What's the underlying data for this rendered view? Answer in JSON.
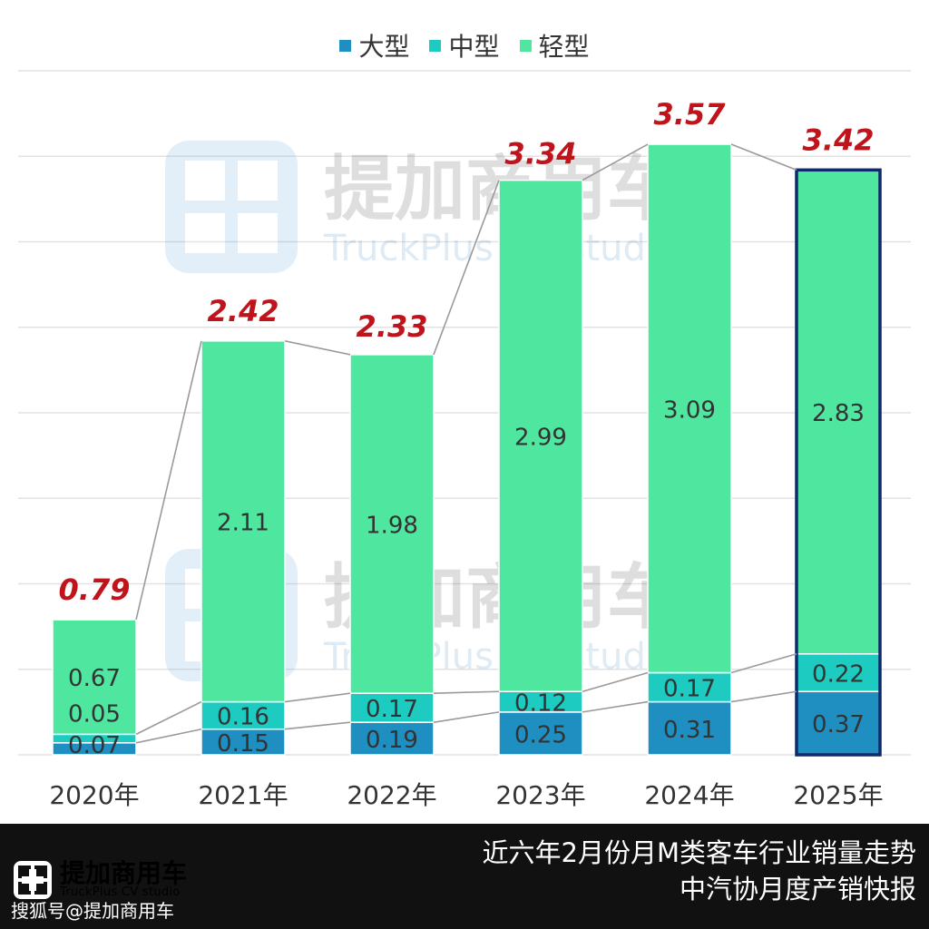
{
  "chart_data": {
    "type": "bar",
    "stacked": true,
    "categories": [
      "2020年",
      "2021年",
      "2022年",
      "2023年",
      "2024年",
      "2025年"
    ],
    "series": [
      {
        "name": "大型",
        "values": [
          0.07,
          0.15,
          0.19,
          0.25,
          0.31,
          0.37
        ],
        "color": "#1E8FC0"
      },
      {
        "name": "中型",
        "values": [
          0.05,
          0.16,
          0.17,
          0.12,
          0.17,
          0.22
        ],
        "color": "#1DCBC0"
      },
      {
        "name": "轻型",
        "values": [
          0.67,
          2.11,
          1.98,
          2.99,
          3.09,
          2.83
        ],
        "color": "#4FE6A0"
      }
    ],
    "totals": [
      0.79,
      2.42,
      2.33,
      3.34,
      3.57,
      3.42
    ],
    "totals_labels": [
      "0.79",
      "2.42",
      "2.33",
      "3.34",
      "3.57",
      "3.42"
    ],
    "ylim": [
      0,
      4
    ],
    "grid": true,
    "legend_position": "top-center",
    "highlighted_category": "2025年",
    "total_label_color": "#C0141C",
    "gridline_color": "#E2E2E2"
  },
  "legend": {
    "items": [
      {
        "label": "大型",
        "color": "#1E8FC0"
      },
      {
        "label": "中型",
        "color": "#1DCBC0"
      },
      {
        "label": "轻型",
        "color": "#4FE6A0"
      }
    ]
  },
  "watermark": {
    "text_cn": "提加商用车",
    "text_en": "TruckPlus  CV studio"
  },
  "footer": {
    "logo_cn": "提加商用车",
    "logo_en": "TruckPlus CV studio",
    "source": "搜狐号@提加商用车",
    "title_line1": "近六年2月份月M类客车行业销量走势",
    "title_line2": "中汽协月度产销快报"
  }
}
